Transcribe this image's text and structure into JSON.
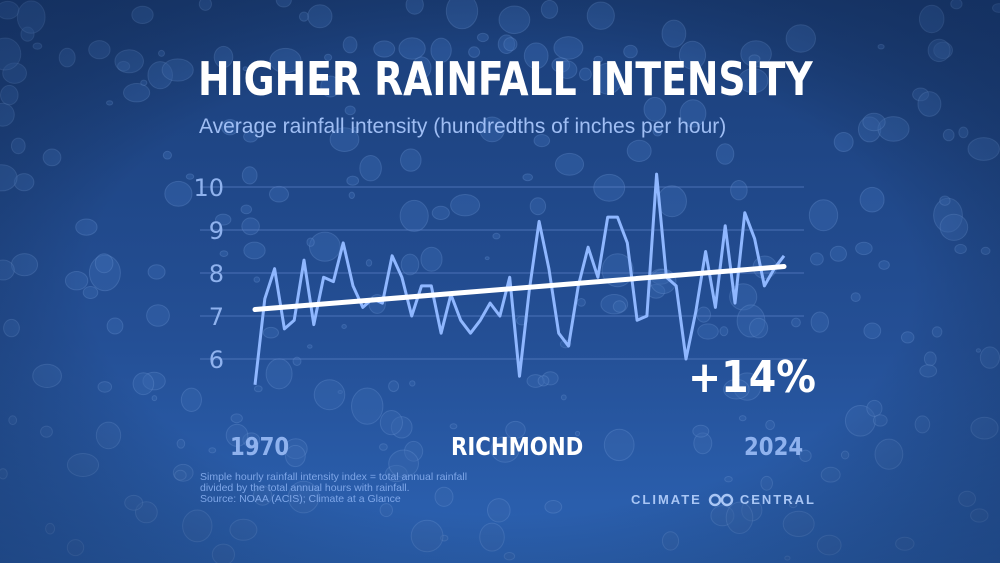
{
  "title": "HIGHER RAINFALL INTENSITY",
  "subtitle": "Average rainfall intensity (hundredths of inches per hour)",
  "start_year_label": "1970",
  "end_year_label": "2024",
  "city": "RICHMOND",
  "change_label": "+14%",
  "notes": [
    "Simple hourly rainfall intensity index = total annual rainfall",
    "divided by the total annual hours with rainfall.",
    "Source: NOAA (ACIS); Climate at a Glance"
  ],
  "brand": {
    "left": "CLIMATE",
    "right": "CENTRAL",
    "icon": "infinity-logo-icon"
  },
  "colors": {
    "background_top": "#1d4482",
    "background_bottom": "#2a60b0",
    "series": "#8fb7ff",
    "trend": "#ffffff",
    "grid": "#5c82c8"
  },
  "chart_data": {
    "type": "line",
    "title": "Average rainfall intensity (hundredths of inches per hour)",
    "xlabel": "",
    "ylabel": "",
    "ylim": [
      5.3,
      10.4
    ],
    "xlim": [
      1970,
      2024
    ],
    "yticks": [
      6,
      7,
      8,
      9,
      10
    ],
    "grid": true,
    "series": [
      {
        "name": "",
        "x": [
          1970,
          1971,
          1972,
          1973,
          1974,
          1975,
          1976,
          1977,
          1978,
          1979,
          1980,
          1981,
          1982,
          1983,
          1984,
          1985,
          1986,
          1987,
          1988,
          1989,
          1990,
          1991,
          1992,
          1993,
          1994,
          1995,
          1996,
          1997,
          1998,
          1999,
          2000,
          2001,
          2002,
          2003,
          2004,
          2005,
          2006,
          2007,
          2008,
          2009,
          2010,
          2011,
          2012,
          2013,
          2014,
          2015,
          2016,
          2017,
          2018,
          2019,
          2020,
          2021,
          2022,
          2023,
          2024
        ],
        "values": [
          5.4,
          7.4,
          8.1,
          6.7,
          6.9,
          8.3,
          6.8,
          7.9,
          7.8,
          8.7,
          7.7,
          7.2,
          7.4,
          7.3,
          8.4,
          7.9,
          7.0,
          7.7,
          7.7,
          6.6,
          7.5,
          6.9,
          6.6,
          6.9,
          7.3,
          7.0,
          7.9,
          5.6,
          7.6,
          9.2,
          8.1,
          6.6,
          6.3,
          7.7,
          8.6,
          7.9,
          9.3,
          9.3,
          8.7,
          6.9,
          7.0,
          10.3,
          7.9,
          7.7,
          6.0,
          7.1,
          8.5,
          7.2,
          9.1,
          7.3,
          9.4,
          8.8,
          7.7,
          8.1,
          8.4
        ]
      },
      {
        "name": "",
        "x": [
          1970,
          2024
        ],
        "values": [
          7.15,
          8.15
        ],
        "role": "trend"
      }
    ]
  }
}
